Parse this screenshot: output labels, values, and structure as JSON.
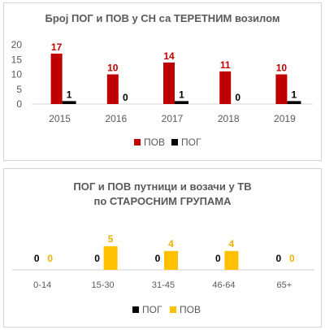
{
  "chart_data": [
    {
      "type": "bar",
      "title": "Број ПОГ и ПОВ у СН са ТЕРЕТНИМ возилом",
      "categories": [
        "2015",
        "2016",
        "2017",
        "2018",
        "2019"
      ],
      "series": [
        {
          "name": "ПОВ",
          "values": [
            17,
            10,
            14,
            11,
            10
          ],
          "color": "#c00000",
          "label_color": "#c00000"
        },
        {
          "name": "ПОГ",
          "values": [
            1,
            0,
            1,
            0,
            1
          ],
          "color": "#000000",
          "label_color": "#000000"
        }
      ],
      "ylim": [
        0,
        20
      ],
      "yticks": [
        "0",
        "5",
        "10",
        "15",
        "20"
      ],
      "grid": false,
      "legend": "bottom"
    },
    {
      "type": "bar",
      "title_lines": [
        "ПОГ  и ПОВ путници и возачи у ТВ",
        "по СТАРОСНИМ ГРУПАМА"
      ],
      "categories": [
        "0-14",
        "15-30",
        "31-45",
        "46-64",
        "65+"
      ],
      "series": [
        {
          "name": "ПОГ",
          "values": [
            0,
            0,
            0,
            0,
            0
          ],
          "color": "#000000",
          "label_color": "#000000"
        },
        {
          "name": "ПОВ",
          "values": [
            0,
            5,
            4,
            4,
            0
          ],
          "color": "#ffc000",
          "label_color": "#f0b000"
        }
      ],
      "ylim": [
        0,
        5
      ],
      "grid": false,
      "legend": "bottom"
    }
  ]
}
